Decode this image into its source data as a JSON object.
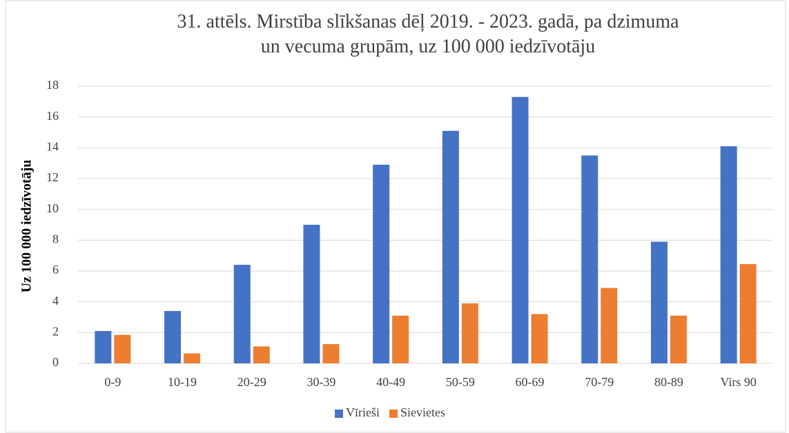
{
  "chart_data": {
    "type": "bar",
    "title": "31. attēls. Mirstība slīkšanas dēļ 2019. - 2023. gadā, pa dzimuma un vecuma grupām, uz 100 000 iedzīvotāju",
    "y_label": "Uz 100 000 iedzīvotāju",
    "categories": [
      "0-9",
      "10-19",
      "20-29",
      "30-39",
      "40-49",
      "50-59",
      "60-69",
      "70-79",
      "80-89",
      "Virs 90"
    ],
    "series": [
      {
        "name": "Vīrieši",
        "color": "#4472c4",
        "values": [
          2.1,
          3.4,
          6.4,
          9.0,
          12.9,
          15.1,
          17.3,
          13.5,
          7.9,
          14.1
        ]
      },
      {
        "name": "Sievietes",
        "color": "#ed7d31",
        "values": [
          1.85,
          0.65,
          1.1,
          1.25,
          3.1,
          3.9,
          3.2,
          4.9,
          3.1,
          6.45
        ]
      }
    ],
    "ylim": [
      0,
      18
    ],
    "yticks": [
      0,
      2,
      4,
      6,
      8,
      10,
      12,
      14,
      16,
      18
    ],
    "grid": true,
    "legend": "bottom"
  }
}
